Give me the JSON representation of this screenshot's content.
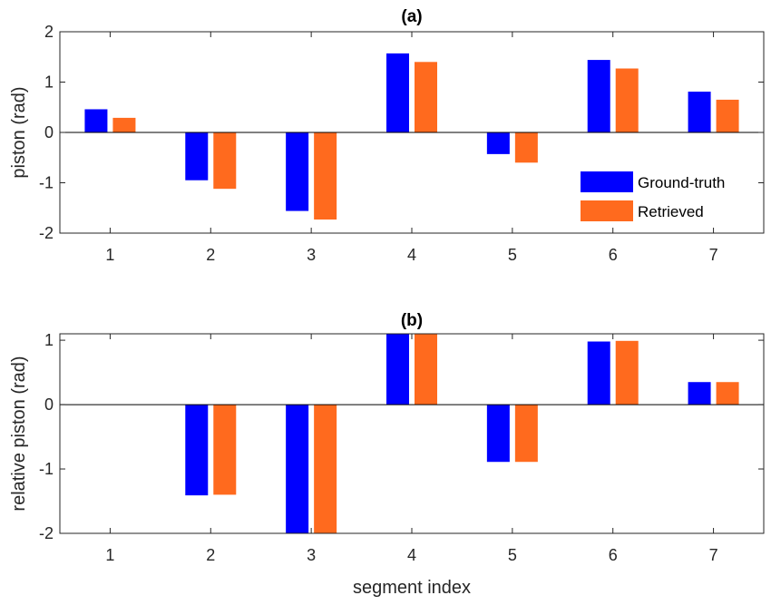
{
  "colors": {
    "ground_truth": "#0000FF",
    "retrieved": "#FF6A1E",
    "axis": "#262626"
  },
  "chart_data": [
    {
      "type": "bar",
      "title": "(a)",
      "xlabel": "",
      "ylabel": "piston (rad)",
      "categories": [
        "1",
        "2",
        "3",
        "4",
        "5",
        "6",
        "7"
      ],
      "ylim": [
        -2,
        2
      ],
      "yticks": [
        "-2",
        "-1",
        "0",
        "1",
        "2"
      ],
      "series": [
        {
          "name": "Ground-truth",
          "values": [
            0.46,
            -0.95,
            -1.56,
            1.57,
            -0.43,
            1.44,
            0.81
          ]
        },
        {
          "name": "Retrieved",
          "values": [
            0.29,
            -1.12,
            -1.73,
            1.4,
            -0.6,
            1.27,
            0.65
          ]
        }
      ],
      "legend": "bottom-right",
      "grid": false
    },
    {
      "type": "bar",
      "title": "(b)",
      "xlabel": "segment index",
      "ylabel": "relative piston (rad)",
      "categories": [
        "1",
        "2",
        "3",
        "4",
        "5",
        "6",
        "7"
      ],
      "ylim": [
        -2,
        1.1
      ],
      "yticks": [
        "-2",
        "-1",
        "0",
        "1"
      ],
      "series": [
        {
          "name": "Ground-truth",
          "values": [
            0,
            -1.41,
            -2.02,
            1.11,
            -0.89,
            0.98,
            0.35
          ]
        },
        {
          "name": "Retrieved",
          "values": [
            0,
            -1.4,
            -2.02,
            1.11,
            -0.89,
            0.99,
            0.35
          ]
        }
      ],
      "legend": "none",
      "grid": false
    }
  ]
}
